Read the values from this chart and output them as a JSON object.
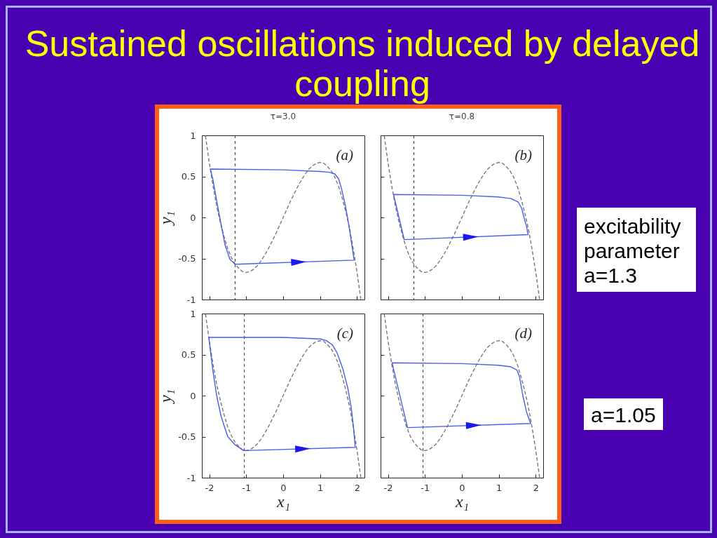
{
  "chart_data": [
    {
      "type": "other",
      "title": "Sustained oscillations induced by delayed coupling"
    },
    {
      "type": "line",
      "title": "τ=3.0",
      "ylabel": "y₁",
      "annotations": [
        "(a)"
      ],
      "xlim": [
        -2.2,
        2.2
      ],
      "ylim": [
        -1,
        1
      ],
      "xticks": [
        -2,
        -1,
        0,
        1,
        2
      ],
      "yticks": [
        -1,
        -0.5,
        0,
        0.5,
        1
      ],
      "tick_labels": "y",
      "ref_lines": [
        {
          "axis": "x",
          "value": -1.3,
          "color": "#333333",
          "line_style": "dashed"
        }
      ],
      "series": [
        {
          "color": "#777777",
          "line_style": "dashed",
          "x": [
            -2.1,
            -2,
            -1.9,
            -1.8,
            -1.7,
            -1.6,
            -1.5,
            -1.4,
            -1.3,
            -1.2,
            -1.1,
            -1,
            -0.9,
            -0.8,
            -0.7,
            -0.6,
            -0.5,
            -0.4,
            -0.3,
            -0.2,
            -0.1,
            0,
            0.1,
            0.2,
            0.3,
            0.4,
            0.5,
            0.6,
            0.7,
            0.8,
            0.9,
            1,
            1.1,
            1.2,
            1.3,
            1.4,
            1.5,
            1.6,
            1.7,
            1.8,
            1.9,
            2,
            2.1
          ],
          "values": [
            0.99,
            0.67,
            0.39,
            0.14,
            -0.06,
            -0.23,
            -0.38,
            -0.49,
            -0.57,
            -0.62,
            -0.66,
            -0.67,
            -0.66,
            -0.63,
            -0.59,
            -0.53,
            -0.46,
            -0.38,
            -0.29,
            -0.2,
            -0.1,
            0,
            0.1,
            0.2,
            0.29,
            0.38,
            0.46,
            0.53,
            0.59,
            0.63,
            0.66,
            0.67,
            0.66,
            0.62,
            0.57,
            0.49,
            0.38,
            0.23,
            0.06,
            -0.14,
            -0.39,
            -0.67,
            -0.99
          ]
        }
      ]
    },
    {
      "type": "line",
      "title": "τ=0.8",
      "annotations": [
        "(b)"
      ],
      "xlim": [
        -2.2,
        2.2
      ],
      "ylim": [
        -1,
        1
      ],
      "xticks": [
        -2,
        -1,
        0,
        1,
        2
      ],
      "yticks": [
        -1,
        -0.5,
        0,
        0.5,
        1
      ],
      "tick_labels": false,
      "ref_lines": [
        {
          "axis": "x",
          "value": -1.3,
          "color": "#333333",
          "line_style": "dashed"
        }
      ],
      "series": [
        {
          "color": "#777777",
          "line_style": "dashed",
          "x": [
            -2.1,
            -2,
            -1.9,
            -1.8,
            -1.7,
            -1.6,
            -1.5,
            -1.4,
            -1.3,
            -1.2,
            -1.1,
            -1,
            -0.9,
            -0.8,
            -0.7,
            -0.6,
            -0.5,
            -0.4,
            -0.3,
            -0.2,
            -0.1,
            0,
            0.1,
            0.2,
            0.3,
            0.4,
            0.5,
            0.6,
            0.7,
            0.8,
            0.9,
            1,
            1.1,
            1.2,
            1.3,
            1.4,
            1.5,
            1.6,
            1.7,
            1.8,
            1.9,
            2,
            2.1
          ],
          "values": [
            0.99,
            0.67,
            0.39,
            0.14,
            -0.06,
            -0.23,
            -0.38,
            -0.49,
            -0.57,
            -0.62,
            -0.66,
            -0.67,
            -0.66,
            -0.63,
            -0.59,
            -0.53,
            -0.46,
            -0.38,
            -0.29,
            -0.2,
            -0.1,
            0,
            0.1,
            0.2,
            0.29,
            0.38,
            0.46,
            0.53,
            0.59,
            0.63,
            0.66,
            0.67,
            0.66,
            0.62,
            0.57,
            0.49,
            0.38,
            0.23,
            0.06,
            -0.14,
            -0.39,
            -0.67,
            -0.99
          ]
        }
      ]
    },
    {
      "type": "other",
      "annotations": [
        "excitability parameter a=1.3"
      ]
    },
    {
      "type": "line",
      "xlabel": "x₁",
      "ylabel": "y₁",
      "annotations": [
        "(c)"
      ],
      "xlim": [
        -2.2,
        2.2
      ],
      "ylim": [
        -1,
        1
      ],
      "xticks": [
        -2,
        -1,
        0,
        1,
        2
      ],
      "yticks": [
        -1,
        -0.5,
        0,
        0.5,
        1
      ],
      "ref_lines": [
        {
          "axis": "x",
          "value": -1.05,
          "color": "#333333",
          "line_style": "dashed"
        }
      ],
      "series": [
        {
          "color": "#777777",
          "line_style": "dashed",
          "x": [
            -2.1,
            -2,
            -1.9,
            -1.8,
            -1.7,
            -1.6,
            -1.5,
            -1.4,
            -1.3,
            -1.2,
            -1.1,
            -1,
            -0.9,
            -0.8,
            -0.7,
            -0.6,
            -0.5,
            -0.4,
            -0.3,
            -0.2,
            -0.1,
            0,
            0.1,
            0.2,
            0.3,
            0.4,
            0.5,
            0.6,
            0.7,
            0.8,
            0.9,
            1,
            1.1,
            1.2,
            1.3,
            1.4,
            1.5,
            1.6,
            1.7,
            1.8,
            1.9,
            2,
            2.1
          ],
          "values": [
            0.99,
            0.67,
            0.39,
            0.14,
            -0.06,
            -0.23,
            -0.38,
            -0.49,
            -0.57,
            -0.62,
            -0.66,
            -0.67,
            -0.66,
            -0.63,
            -0.59,
            -0.53,
            -0.46,
            -0.38,
            -0.29,
            -0.2,
            -0.1,
            0,
            0.1,
            0.2,
            0.29,
            0.38,
            0.46,
            0.53,
            0.59,
            0.63,
            0.66,
            0.67,
            0.66,
            0.62,
            0.57,
            0.49,
            0.38,
            0.23,
            0.06,
            -0.14,
            -0.39,
            -0.67,
            -0.99
          ]
        }
      ]
    },
    {
      "type": "line",
      "xlabel": "x₁",
      "annotations": [
        "(d)"
      ],
      "xlim": [
        -2.2,
        2.2
      ],
      "ylim": [
        -1,
        1
      ],
      "xticks": [
        -2,
        -1,
        0,
        1,
        2
      ],
      "yticks": [
        -1,
        -0.5,
        0,
        0.5,
        1
      ],
      "tick_labels": "x",
      "ref_lines": [
        {
          "axis": "x",
          "value": -1.05,
          "color": "#333333",
          "line_style": "dashed"
        }
      ],
      "series": [
        {
          "color": "#777777",
          "line_style": "dashed",
          "x": [
            -2.1,
            -2,
            -1.9,
            -1.8,
            -1.7,
            -1.6,
            -1.5,
            -1.4,
            -1.3,
            -1.2,
            -1.1,
            -1,
            -0.9,
            -0.8,
            -0.7,
            -0.6,
            -0.5,
            -0.4,
            -0.3,
            -0.2,
            -0.1,
            0,
            0.1,
            0.2,
            0.3,
            0.4,
            0.5,
            0.6,
            0.7,
            0.8,
            0.9,
            1,
            1.1,
            1.2,
            1.3,
            1.4,
            1.5,
            1.6,
            1.7,
            1.8,
            1.9,
            2,
            2.1
          ],
          "values": [
            0.99,
            0.67,
            0.39,
            0.14,
            -0.06,
            -0.23,
            -0.38,
            -0.49,
            -0.57,
            -0.62,
            -0.66,
            -0.67,
            -0.66,
            -0.63,
            -0.59,
            -0.53,
            -0.46,
            -0.38,
            -0.29,
            -0.2,
            -0.1,
            0,
            0.1,
            0.2,
            0.29,
            0.38,
            0.46,
            0.53,
            0.59,
            0.63,
            0.66,
            0.67,
            0.66,
            0.62,
            0.57,
            0.49,
            0.38,
            0.23,
            0.06,
            -0.14,
            -0.39,
            -0.67,
            -0.99
          ]
        }
      ]
    },
    {
      "type": "other",
      "annotations": [
        "a=1.05"
      ]
    }
  ]
}
